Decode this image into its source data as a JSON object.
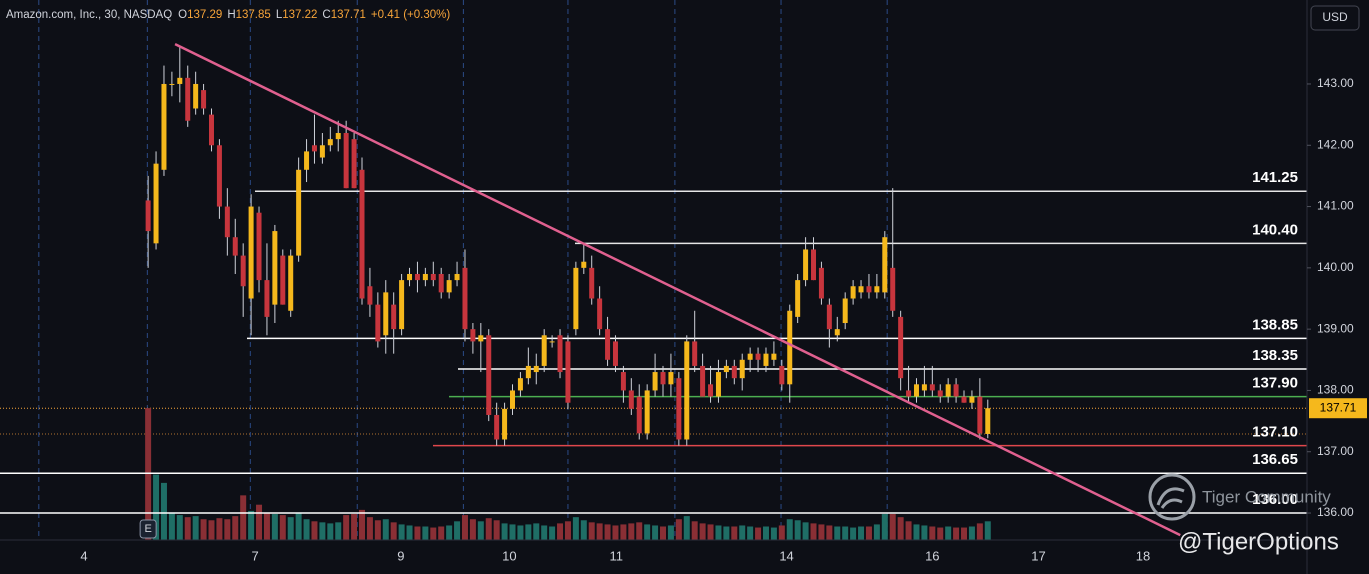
{
  "chart_data": {
    "type": "candlestick",
    "title": "Amazon.com, Inc., 30, NASDAQ",
    "ohlc_labels": [
      "O",
      "H",
      "L",
      "C"
    ],
    "change": "+0.41 (+0.30%)",
    "currency": "USD",
    "earnings_marker": "E",
    "watermark": "Tiger Community",
    "handle": "@TigerOptions",
    "up_color": "#f5b81c",
    "down_color": "#c7353d",
    "volume_up_color": "#1f6e66",
    "volume_down_color": "#8a2f35",
    "open": [
      141.1,
      140.4,
      141.6,
      143.0,
      143.0,
      143.1,
      142.6,
      142.9,
      142.5,
      142.0,
      141.0,
      140.5,
      140.2,
      139.5,
      140.9,
      139.8,
      139.4,
      140.2,
      139.3,
      140.2,
      141.6,
      142.0,
      141.8,
      142.0,
      142.1,
      142.2,
      142.1,
      141.6,
      139.7,
      139.4,
      138.9,
      139.4,
      139.0,
      139.8,
      139.9,
      139.8,
      139.9,
      139.9,
      139.6,
      139.8,
      140.0,
      139.0,
      138.8,
      138.9,
      137.6,
      137.2,
      137.7,
      138.0,
      138.2,
      138.3,
      138.4,
      138.8,
      138.9,
      138.8,
      139.0,
      140.0,
      140.0,
      139.5,
      139.0,
      138.8,
      138.3,
      138.0,
      137.9,
      137.3,
      138.0,
      138.3,
      138.1,
      138.2,
      137.2,
      138.8,
      138.4,
      138.1,
      137.9,
      138.3,
      138.4,
      138.2,
      138.5,
      138.6,
      138.4,
      138.5,
      138.4,
      138.1,
      139.2,
      139.8,
      140.3,
      140.0,
      139.4,
      138.9,
      139.1,
      139.5,
      139.6,
      139.7,
      139.6,
      139.6,
      140.0,
      139.2,
      138.0,
      137.9,
      138.0,
      138.1,
      138.0,
      137.9,
      138.1,
      137.9,
      137.8,
      137.9,
      137.29
    ],
    "high": [
      141.5,
      141.9,
      143.3,
      143.2,
      143.6,
      143.3,
      143.2,
      143.0,
      142.6,
      142.1,
      141.3,
      140.8,
      140.4,
      141.2,
      141.0,
      140.4,
      140.7,
      140.3,
      140.3,
      141.8,
      142.1,
      142.5,
      142.2,
      142.3,
      142.4,
      142.4,
      142.2,
      141.8,
      140.0,
      139.6,
      139.8,
      139.6,
      139.9,
      140.0,
      140.1,
      140.0,
      140.1,
      140.0,
      139.9,
      140.1,
      140.3,
      139.1,
      139.1,
      139.0,
      137.8,
      137.8,
      138.1,
      138.3,
      138.7,
      138.6,
      139.0,
      138.9,
      139.0,
      138.9,
      140.1,
      140.4,
      140.2,
      139.7,
      139.2,
      138.9,
      138.4,
      138.2,
      138.1,
      138.1,
      138.6,
      138.4,
      138.6,
      138.3,
      138.9,
      139.3,
      138.6,
      138.4,
      138.5,
      138.5,
      138.5,
      138.6,
      138.7,
      138.7,
      138.7,
      138.8,
      138.5,
      139.4,
      139.9,
      140.5,
      140.5,
      140.1,
      139.5,
      139.2,
      139.6,
      139.8,
      139.8,
      139.9,
      139.9,
      140.6,
      141.3,
      139.3,
      138.4,
      138.2,
      138.4,
      138.4,
      138.1,
      138.2,
      138.2,
      138.0,
      138.0,
      138.2,
      137.85
    ],
    "low": [
      140.0,
      140.3,
      141.5,
      142.8,
      142.7,
      142.3,
      142.5,
      142.5,
      141.9,
      140.8,
      140.2,
      139.9,
      139.2,
      138.9,
      139.6,
      138.9,
      139.1,
      139.4,
      139.2,
      140.1,
      141.4,
      141.7,
      141.7,
      141.9,
      141.9,
      141.3,
      141.3,
      139.4,
      139.2,
      138.7,
      138.6,
      138.6,
      138.9,
      139.7,
      139.6,
      139.7,
      139.7,
      139.5,
      139.5,
      139.7,
      138.8,
      138.6,
      138.3,
      137.5,
      137.1,
      137.1,
      137.6,
      137.9,
      138.1,
      138.1,
      138.3,
      138.7,
      138.2,
      137.7,
      138.9,
      139.9,
      139.4,
      138.9,
      138.4,
      138.3,
      137.8,
      137.6,
      137.2,
      137.2,
      137.9,
      137.9,
      137.9,
      137.1,
      137.1,
      138.3,
      137.9,
      137.8,
      137.8,
      138.2,
      138.1,
      138.0,
      138.3,
      138.3,
      138.3,
      138.4,
      138.0,
      137.8,
      139.1,
      139.7,
      139.8,
      139.4,
      138.7,
      138.8,
      139.0,
      139.4,
      139.5,
      139.5,
      139.5,
      139.5,
      139.2,
      138.0,
      137.8,
      137.8,
      137.9,
      137.9,
      137.8,
      137.8,
      137.8,
      137.8,
      137.7,
      137.2,
      137.22
    ],
    "close": [
      140.6,
      141.7,
      143.0,
      143.0,
      143.1,
      142.4,
      143.0,
      142.6,
      142.0,
      141.0,
      140.5,
      140.2,
      139.7,
      141.0,
      139.8,
      139.2,
      140.6,
      139.4,
      140.2,
      141.6,
      141.9,
      141.9,
      142.0,
      142.1,
      142.2,
      141.3,
      141.3,
      139.5,
      139.4,
      138.8,
      139.6,
      139.0,
      139.8,
      139.9,
      139.8,
      139.9,
      139.8,
      139.6,
      139.8,
      139.9,
      139.0,
      138.8,
      138.9,
      137.6,
      137.2,
      137.7,
      138.0,
      138.2,
      138.4,
      138.4,
      138.9,
      138.8,
      138.3,
      137.8,
      140.0,
      140.1,
      139.5,
      139.0,
      138.5,
      138.4,
      138.0,
      137.7,
      137.3,
      138.0,
      138.3,
      138.1,
      138.3,
      137.2,
      138.8,
      138.4,
      137.9,
      137.9,
      138.3,
      138.4,
      138.2,
      138.5,
      138.6,
      138.5,
      138.6,
      138.6,
      138.1,
      139.3,
      139.8,
      140.3,
      139.8,
      139.5,
      139.0,
      139.0,
      139.5,
      139.7,
      139.7,
      139.6,
      139.7,
      140.5,
      139.3,
      138.2,
      137.9,
      138.1,
      138.1,
      138.0,
      137.9,
      138.1,
      137.9,
      137.8,
      137.9,
      137.3,
      137.71
    ],
    "volume": [
      12.7,
      6.3,
      5.5,
      2.6,
      2.4,
      2.2,
      2.3,
      2.0,
      1.9,
      2.1,
      2.0,
      2.3,
      4.3,
      2.8,
      3.4,
      2.6,
      2.5,
      2.4,
      2.2,
      2.6,
      2.0,
      1.8,
      1.7,
      1.6,
      1.7,
      2.4,
      2.5,
      2.9,
      2.2,
      1.9,
      2.0,
      1.7,
      1.5,
      1.4,
      1.3,
      1.3,
      1.2,
      1.3,
      1.4,
      1.8,
      2.4,
      2.0,
      1.8,
      2.1,
      1.9,
      1.6,
      1.5,
      1.4,
      1.5,
      1.6,
      1.4,
      1.3,
      1.6,
      1.8,
      2.2,
      1.9,
      1.7,
      1.6,
      1.5,
      1.4,
      1.5,
      1.6,
      1.7,
      1.5,
      1.4,
      1.3,
      1.4,
      2.0,
      2.3,
      1.8,
      1.6,
      1.5,
      1.4,
      1.3,
      1.3,
      1.4,
      1.3,
      1.2,
      1.3,
      1.2,
      1.4,
      2.0,
      1.9,
      1.7,
      1.6,
      1.5,
      1.4,
      1.3,
      1.3,
      1.2,
      1.3,
      1.3,
      1.5,
      2.5,
      2.5,
      2.2,
      1.8,
      1.5,
      1.4,
      1.3,
      1.2,
      1.3,
      1.2,
      1.2,
      1.3,
      1.6,
      1.8
    ],
    "vlim": [
      0,
      52
    ],
    "xlim": [
      -18.7,
      146.3
    ],
    "xticks": [
      {
        "value": -8.1,
        "label": "4"
      },
      {
        "value": 13.5,
        "label": "7"
      },
      {
        "value": 31.9,
        "label": "9"
      },
      {
        "value": 45.6,
        "label": "10"
      },
      {
        "value": 59.1,
        "label": "11"
      },
      {
        "value": 80.6,
        "label": "14"
      },
      {
        "value": 99.0,
        "label": "16"
      },
      {
        "value": 112.4,
        "label": "17"
      },
      {
        "value": 125.6,
        "label": "18"
      }
    ],
    "xgrid": [
      -13.8,
      -0.1,
      12.9,
      26.4,
      39.8,
      53.0,
      66.5,
      79.9,
      93.3
    ],
    "ylim": [
      135.56,
      144.37
    ],
    "yticks": [
      {
        "value": 136,
        "label": "136.00"
      },
      {
        "value": 137,
        "label": "137.00"
      },
      {
        "value": 138,
        "label": "138.00"
      },
      {
        "value": 139,
        "label": "139.00"
      },
      {
        "value": 140,
        "label": "140.00"
      },
      {
        "value": 141,
        "label": "141.00"
      },
      {
        "value": 142,
        "label": "142.00"
      },
      {
        "value": 143,
        "label": "143.00"
      }
    ],
    "levels": [
      {
        "value": 141.25,
        "label": "141.25",
        "color": "#e6e6e6"
      },
      {
        "value": 140.4,
        "label": "140.40",
        "color": "#e6e6e6"
      },
      {
        "value": 138.85,
        "label": "138.85",
        "color": "#ffffff"
      },
      {
        "value": 138.35,
        "label": "138.35",
        "color": "#ffffff"
      },
      {
        "value": 137.9,
        "label": "137.90",
        "color": "#4caf50"
      },
      {
        "value": 137.1,
        "label": "137.10",
        "color": "#e0474c"
      },
      {
        "value": 136.65,
        "label": "136.65",
        "color": "#ffffff"
      },
      {
        "value": 136.0,
        "label": "136.00",
        "color": "#ffffff"
      }
    ],
    "trendline": {
      "color": "#e0608f",
      "x": [
        3.4,
        130.3
      ],
      "y": [
        143.65,
        135.64
      ]
    }
  }
}
